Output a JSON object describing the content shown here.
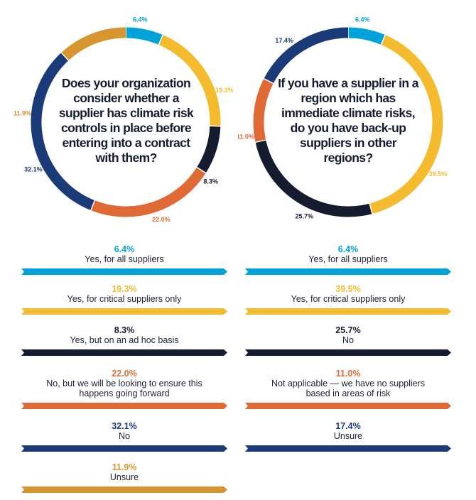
{
  "chart_data": [
    {
      "type": "pie",
      "title": "Does your organization consider whether a supplier has climate risk controls in place before entering into a contract with them?",
      "slices": [
        {
          "label": "Yes, for all suppliers",
          "value": 6.4,
          "value_label": "6.4%",
          "color": "#00a3d9"
        },
        {
          "label": "Yes, for critical suppliers only",
          "value": 19.3,
          "value_label": "19.3%",
          "color": "#f4bb2f"
        },
        {
          "label": "Yes, but on an ad hoc basis",
          "value": 8.3,
          "value_label": "8.3%",
          "color": "#161c30"
        },
        {
          "label": "No, but we will be looking to ensure this happens going forward",
          "value": 22.0,
          "value_label": "22.0%",
          "color": "#e06a35"
        },
        {
          "label": "No",
          "value": 32.1,
          "value_label": "32.1%",
          "color": "#1b3a78"
        },
        {
          "label": "Unsure",
          "value": 11.9,
          "value_label": "11.9%",
          "color": "#d6952f"
        }
      ]
    },
    {
      "type": "pie",
      "title": "If you have a supplier in a region which has immediate climate risks, do you have back-up suppliers in other regions?",
      "slices": [
        {
          "label": "Yes, for all suppliers",
          "value": 6.4,
          "value_label": "6.4%",
          "color": "#00a3d9"
        },
        {
          "label": "Yes, for critical suppliers only",
          "value": 39.5,
          "value_label": "39.5%",
          "color": "#f4bb2f"
        },
        {
          "label": "No",
          "value": 25.7,
          "value_label": "25.7%",
          "color": "#161c30"
        },
        {
          "label": "Not applicable — we have no suppliers based in areas of risk",
          "value": 11.0,
          "value_label": "11.0%",
          "color": "#e06a35"
        },
        {
          "label": "Unsure",
          "value": 17.4,
          "value_label": "17.4%",
          "color": "#1b3a78"
        }
      ]
    }
  ]
}
